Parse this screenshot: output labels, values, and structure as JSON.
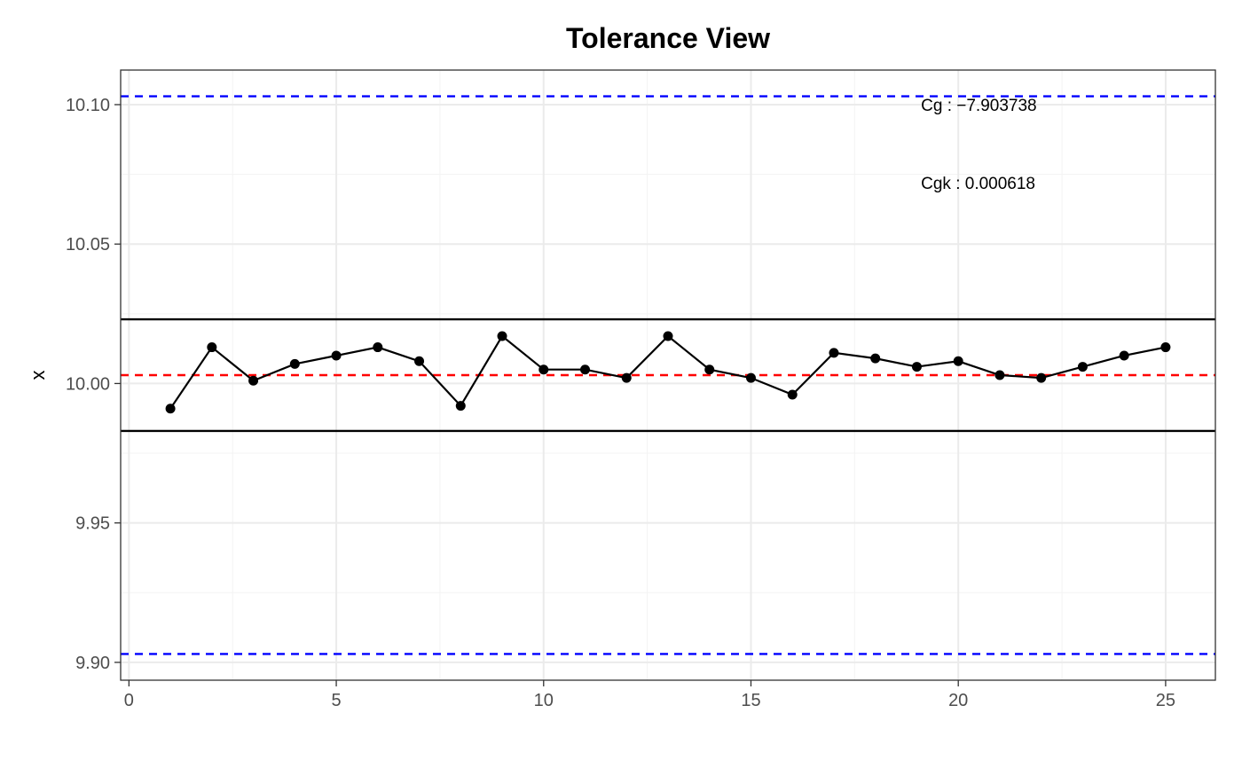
{
  "chart_data": {
    "type": "line",
    "title": "Tolerance View",
    "xlabel": "",
    "ylabel": "x",
    "xlim": [
      -0.2,
      26.2
    ],
    "ylim": [
      9.8936,
      10.1124
    ],
    "x_ticks": [
      0,
      5,
      10,
      15,
      20,
      25
    ],
    "y_ticks": [
      9.9,
      9.95,
      10.0,
      10.05,
      10.1
    ],
    "x_tick_labels": [
      "0",
      "5",
      "10",
      "15",
      "20",
      "25"
    ],
    "y_tick_labels": [
      "9.90",
      "9.95",
      "10.00",
      "10.05",
      "10.10"
    ],
    "grid": true,
    "legend": "none",
    "series": [
      {
        "x": [
          1,
          2,
          3,
          4,
          5,
          6,
          7,
          8,
          9,
          10,
          11,
          12,
          13,
          14,
          15,
          16,
          17,
          18,
          19,
          20,
          21,
          22,
          23,
          24,
          25
        ],
        "values": [
          9.991,
          10.013,
          10.001,
          10.007,
          10.01,
          10.013,
          10.008,
          9.992,
          10.017,
          10.005,
          10.005,
          10.002,
          10.017,
          10.005,
          10.002,
          9.996,
          10.011,
          10.009,
          10.006,
          10.008,
          10.003,
          10.002,
          10.006,
          10.01,
          10.013
        ]
      }
    ],
    "reference_lines": [
      {
        "value": 10.103,
        "style": "dashed",
        "color": "#0000ff"
      },
      {
        "value": 9.903,
        "style": "dashed",
        "color": "#0000ff"
      },
      {
        "value": 10.003,
        "style": "dashed",
        "color": "#ff0000"
      },
      {
        "value": 10.023,
        "style": "solid",
        "color": "#000000"
      },
      {
        "value": 9.983,
        "style": "solid",
        "color": "#000000"
      }
    ],
    "annotations": [
      {
        "text": "Cg : −7.903738",
        "x": 19.1,
        "y": 10.1
      },
      {
        "text": "Cgk : 0.000618",
        "x": 19.1,
        "y": 10.072
      }
    ]
  },
  "colors": {
    "line": "#000000",
    "points": "#000000",
    "grid_major": "#ebebeb",
    "grid_minor": "#f3f3f3",
    "panel_border": "#333333"
  }
}
